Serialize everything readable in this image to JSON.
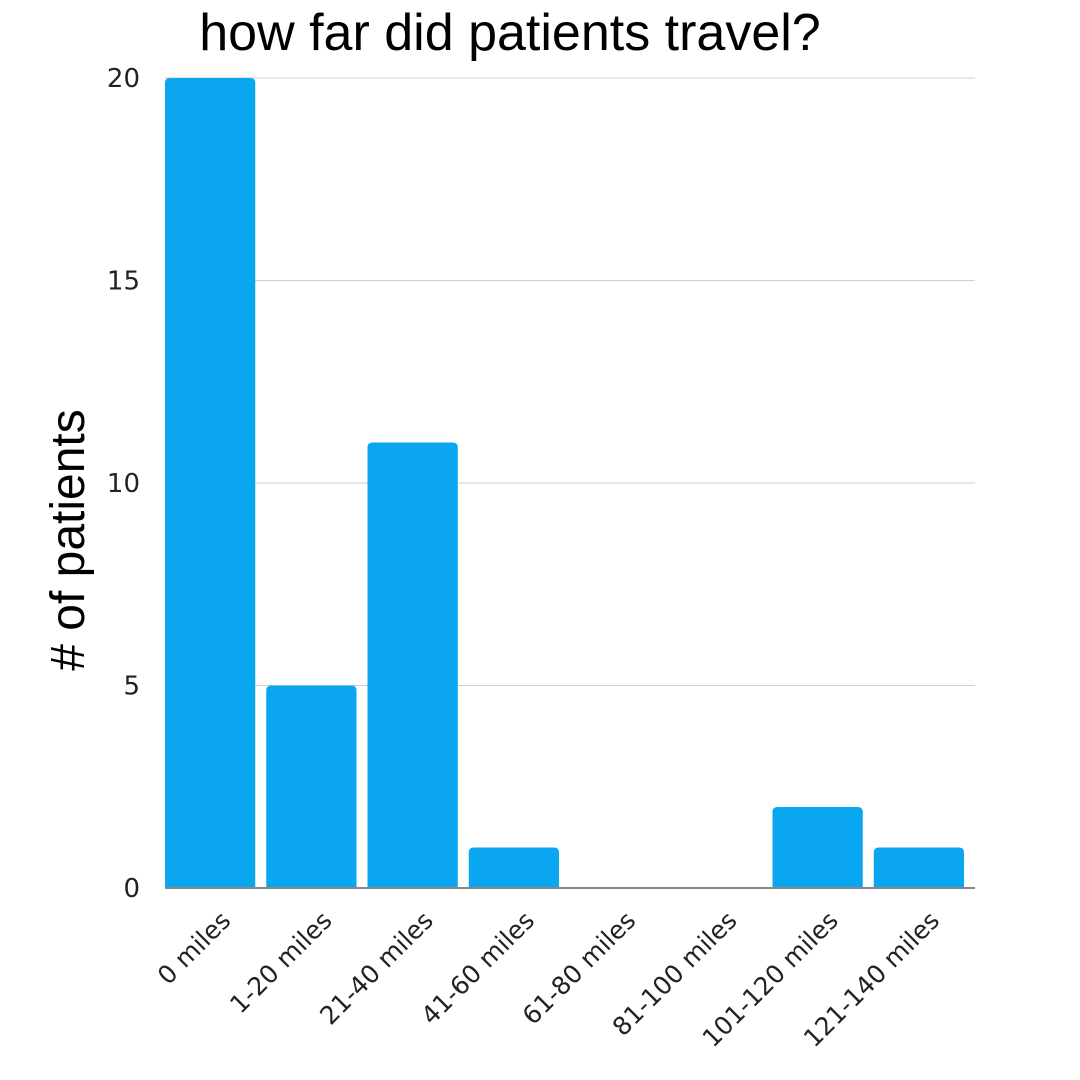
{
  "chart_data": {
    "type": "bar",
    "title": "how far did patients travel?",
    "xlabel": "",
    "ylabel": "# of patients",
    "categories": [
      "0 miles",
      "1-20 miles",
      "21-40 miles",
      "41-60 miles",
      "61-80 miles",
      "81-100 miles",
      "101-120 miles",
      "121-140 miles"
    ],
    "values": [
      20,
      5,
      11,
      1,
      0,
      0,
      2,
      1
    ],
    "ylim": [
      0,
      20
    ],
    "yticks": [
      "0",
      "5",
      "10",
      "15",
      "20"
    ],
    "grid": true,
    "legend": "none",
    "bar_color": "#0AA6F0"
  }
}
